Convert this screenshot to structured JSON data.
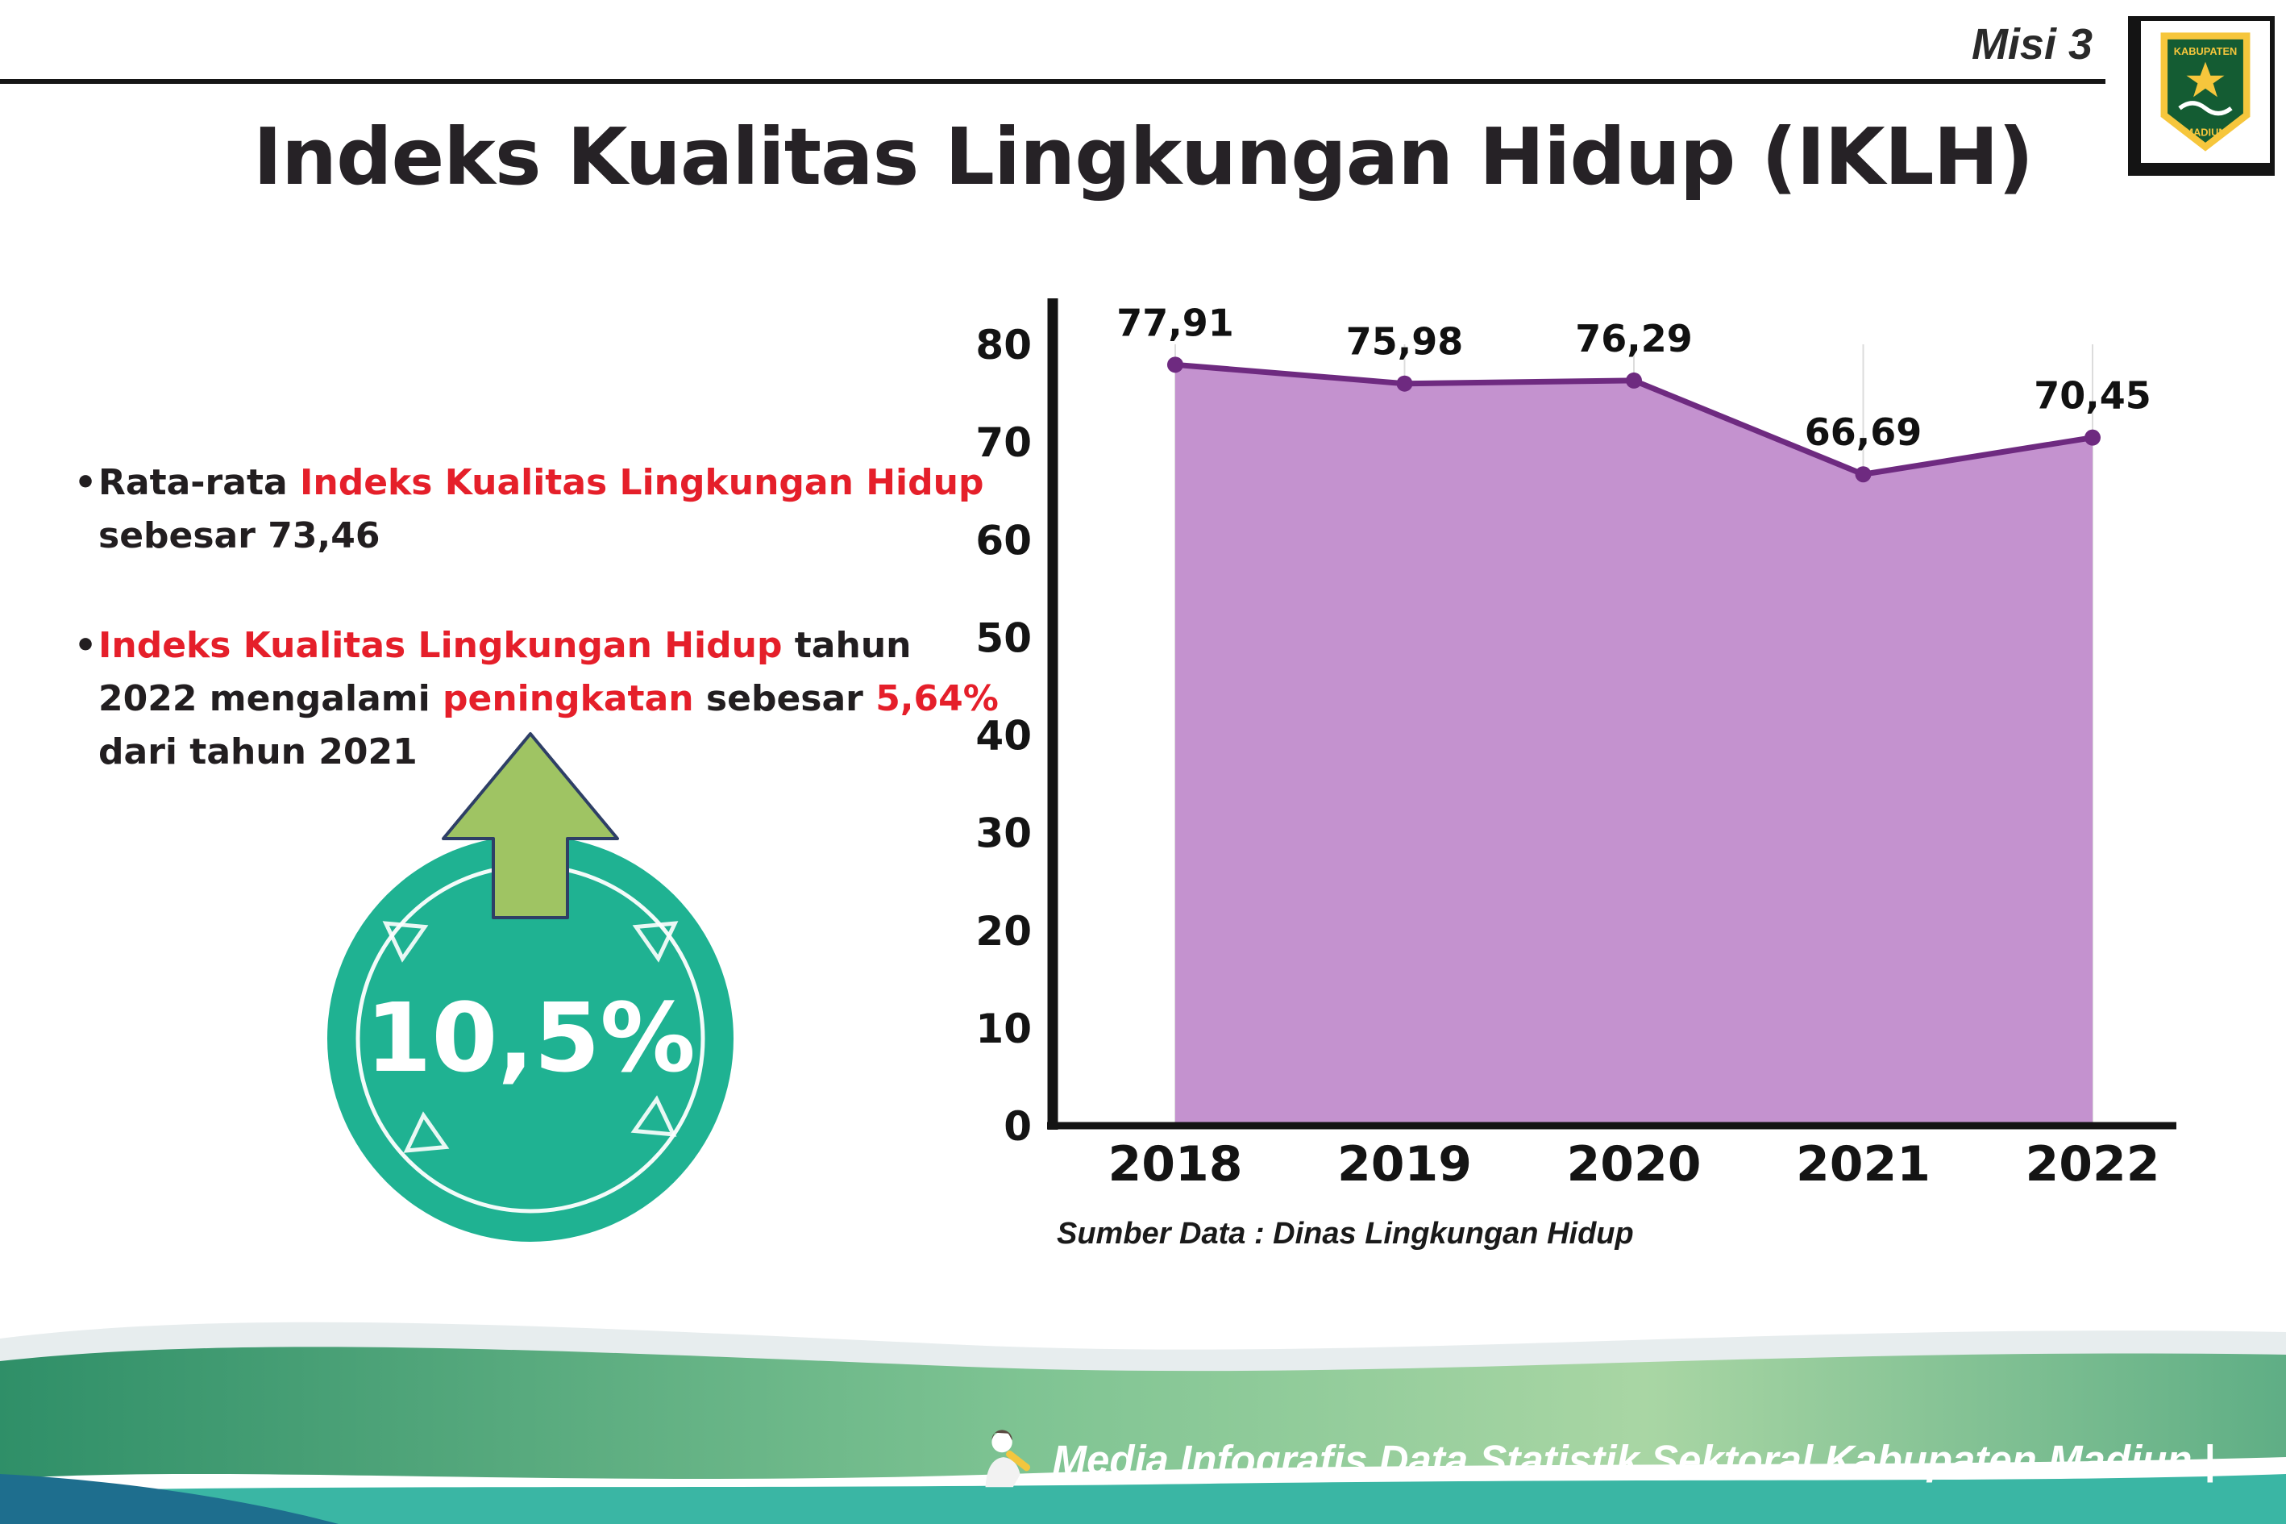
{
  "page": {
    "misi_label": "Misi 3",
    "title": "Indeks Kualitas Lingkungan Hidup (IKLH)",
    "bullet_char": "•"
  },
  "logo": {
    "top_text": "KABUPATEN",
    "bottom_text": "MADIUN"
  },
  "bullets": [
    {
      "segments": [
        {
          "text": "Rata-rata ",
          "red": false
        },
        {
          "text": "Indeks Kualitas Lingkungan Hidup",
          "red": true
        },
        {
          "text": " sebesar 73,46",
          "red": false
        }
      ]
    },
    {
      "segments": [
        {
          "text": "Indeks Kualitas Lingkungan Hidup",
          "red": true
        },
        {
          "text": " tahun 2022 mengalami ",
          "red": false
        },
        {
          "text": "peningkatan",
          "red": true
        },
        {
          "text": " sebesar ",
          "red": false
        },
        {
          "text": "5,64%",
          "red": true
        },
        {
          "text": " dari tahun 2021",
          "red": false
        }
      ]
    }
  ],
  "badge": {
    "value": "10,5%",
    "circle_color": "#1fb292",
    "arrow_color": "#9fc463",
    "arrow_outline": "#2e3f66"
  },
  "chart_data": {
    "type": "area",
    "categories": [
      "2018",
      "2019",
      "2020",
      "2021",
      "2022"
    ],
    "values": [
      77.91,
      75.98,
      76.29,
      66.69,
      70.45
    ],
    "point_labels": [
      "77,91",
      "75,98",
      "76,29",
      "66,69",
      "70,45"
    ],
    "ylim": [
      0,
      80
    ],
    "yticks": [
      0,
      10,
      20,
      30,
      40,
      50,
      60,
      70,
      80
    ],
    "grid": "vertical-light",
    "legend": "none",
    "area_fill": "#c492cf",
    "line_color": "#6e2a80",
    "source": "Sumber Data : Dinas Lingkungan Hidup"
  },
  "footer": {
    "text": "Media Infografis Data Statistik Sektoral Kabupaten Madiun |",
    "bar_color": "#3ab6a4"
  }
}
